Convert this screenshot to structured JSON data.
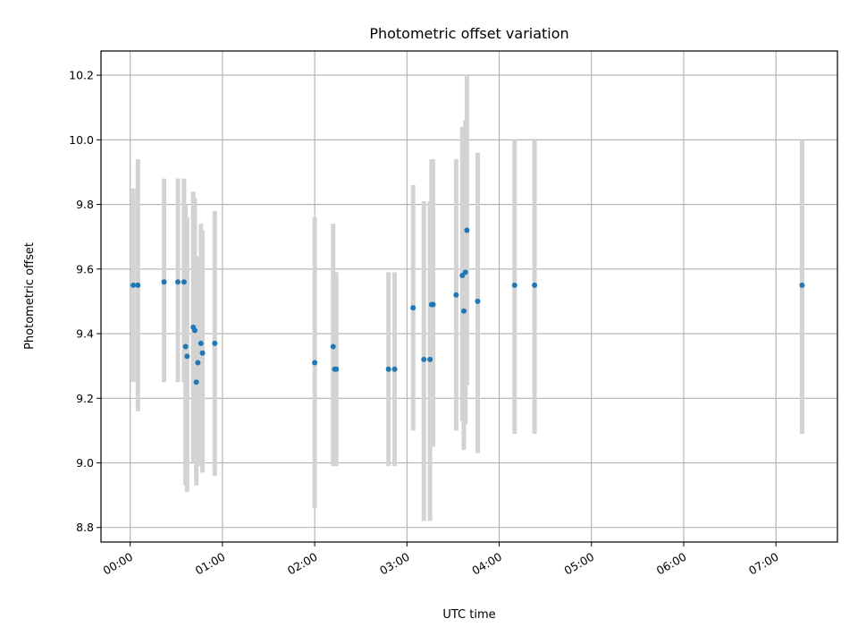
{
  "chart_data": {
    "type": "scatter",
    "title": "Photometric offset variation",
    "xlabel": "UTC time",
    "ylabel": "Photometric offset",
    "x_unit": "hours (UTC)",
    "xlim": [
      "23:41",
      "07:40"
    ],
    "ylim": [
      8.755,
      10.275
    ],
    "x_ticks": [
      "00:00",
      "01:00",
      "02:00",
      "03:00",
      "04:00",
      "05:00",
      "06:00",
      "07:00"
    ],
    "y_ticks": [
      "8.8",
      "9.0",
      "9.2",
      "9.4",
      "9.6",
      "9.8",
      "10.0",
      "10.2"
    ],
    "y_tick_values": [
      8.8,
      9.0,
      9.2,
      9.4,
      9.6,
      9.8,
      10.0,
      10.2
    ],
    "grid": true,
    "colors": {
      "marker": "#1f77b4",
      "errorbar": "#d3d3d3",
      "grid": "#b0b0b0"
    },
    "series": [
      {
        "points": [
          {
            "x": "00:02",
            "y": 9.55,
            "y_low": 9.25,
            "y_high": 9.85
          },
          {
            "x": "00:05",
            "y": 9.55,
            "y_low": 9.16,
            "y_high": 9.94
          },
          {
            "x": "00:22",
            "y": 9.56,
            "y_low": 9.25,
            "y_high": 9.88
          },
          {
            "x": "00:31",
            "y": 9.56,
            "y_low": 9.25,
            "y_high": 9.88
          },
          {
            "x": "00:35",
            "y": 9.56,
            "y_low": 9.25,
            "y_high": 9.88
          },
          {
            "x": "00:36",
            "y": 9.36,
            "y_low": 8.93,
            "y_high": 9.8
          },
          {
            "x": "00:37",
            "y": 9.33,
            "y_low": 8.91,
            "y_high": 9.76
          },
          {
            "x": "00:41",
            "y": 9.42,
            "y_low": 9.0,
            "y_high": 9.84
          },
          {
            "x": "00:42",
            "y": 9.41,
            "y_low": 9.0,
            "y_high": 9.82
          },
          {
            "x": "00:43",
            "y": 9.25,
            "y_low": 8.93,
            "y_high": 9.57
          },
          {
            "x": "00:44",
            "y": 9.31,
            "y_low": 8.99,
            "y_high": 9.64
          },
          {
            "x": "00:46",
            "y": 9.37,
            "y_low": 9.0,
            "y_high": 9.74
          },
          {
            "x": "00:47",
            "y": 9.34,
            "y_low": 8.97,
            "y_high": 9.72
          },
          {
            "x": "00:55",
            "y": 9.37,
            "y_low": 8.96,
            "y_high": 9.78
          },
          {
            "x": "02:00",
            "y": 9.31,
            "y_low": 8.86,
            "y_high": 9.76
          },
          {
            "x": "02:12",
            "y": 9.36,
            "y_low": 8.99,
            "y_high": 9.74
          },
          {
            "x": "02:13",
            "y": 9.29,
            "y_low": 8.99,
            "y_high": 9.59
          },
          {
            "x": "02:14",
            "y": 9.29,
            "y_low": 8.99,
            "y_high": 9.59
          },
          {
            "x": "02:48",
            "y": 9.29,
            "y_low": 8.99,
            "y_high": 9.59
          },
          {
            "x": "02:52",
            "y": 9.29,
            "y_low": 8.99,
            "y_high": 9.59
          },
          {
            "x": "03:04",
            "y": 9.48,
            "y_low": 9.1,
            "y_high": 9.86
          },
          {
            "x": "03:11",
            "y": 9.32,
            "y_low": 8.82,
            "y_high": 9.81
          },
          {
            "x": "03:15",
            "y": 9.32,
            "y_low": 8.82,
            "y_high": 9.81
          },
          {
            "x": "03:16",
            "y": 9.49,
            "y_low": 9.05,
            "y_high": 9.94
          },
          {
            "x": "03:17",
            "y": 9.49,
            "y_low": 9.05,
            "y_high": 9.94
          },
          {
            "x": "03:32",
            "y": 9.52,
            "y_low": 9.1,
            "y_high": 9.94
          },
          {
            "x": "03:36",
            "y": 9.58,
            "y_low": 9.13,
            "y_high": 10.04
          },
          {
            "x": "03:37",
            "y": 9.47,
            "y_low": 9.04,
            "y_high": 9.95
          },
          {
            "x": "03:38",
            "y": 9.59,
            "y_low": 9.12,
            "y_high": 10.06
          },
          {
            "x": "03:39",
            "y": 9.72,
            "y_low": 9.24,
            "y_high": 10.2
          },
          {
            "x": "03:46",
            "y": 9.5,
            "y_low": 9.03,
            "y_high": 9.96
          },
          {
            "x": "04:10",
            "y": 9.55,
            "y_low": 9.09,
            "y_high": 10.0
          },
          {
            "x": "04:23",
            "y": 9.55,
            "y_low": 9.09,
            "y_high": 10.0
          },
          {
            "x": "07:17",
            "y": 9.55,
            "y_low": 9.09,
            "y_high": 10.0
          }
        ]
      }
    ]
  }
}
